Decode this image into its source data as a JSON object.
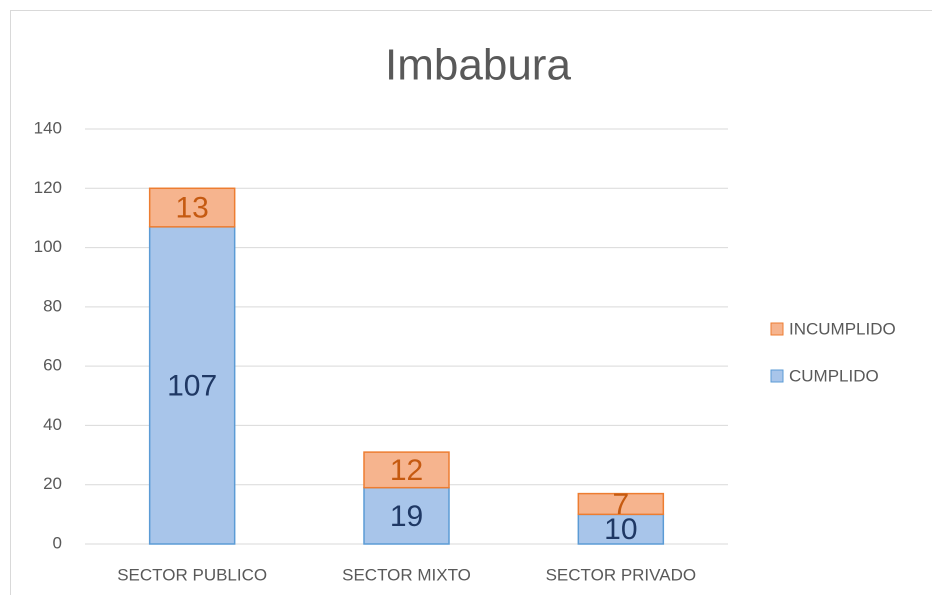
{
  "chart_data": {
    "type": "stacked_bar",
    "title": "Imbabura",
    "categories": [
      "SECTOR PUBLICO",
      "SECTOR MIXTO",
      "SECTOR PRIVADO"
    ],
    "series": [
      {
        "name": "CUMPLIDO",
        "color": "#a8c5ea",
        "edge_color": "#5b9bd5",
        "label_color": "#1f3864",
        "values": [
          107,
          19,
          10
        ]
      },
      {
        "name": "INCUMPLIDO",
        "color": "#f6b48e",
        "edge_color": "#ed7d31",
        "label_color": "#c55a11",
        "values": [
          13,
          12,
          7
        ]
      }
    ],
    "ylim": [
      0,
      140
    ],
    "yticks": [
      0,
      20,
      40,
      60,
      80,
      100,
      120,
      140
    ],
    "grid": true,
    "legend": "right"
  }
}
